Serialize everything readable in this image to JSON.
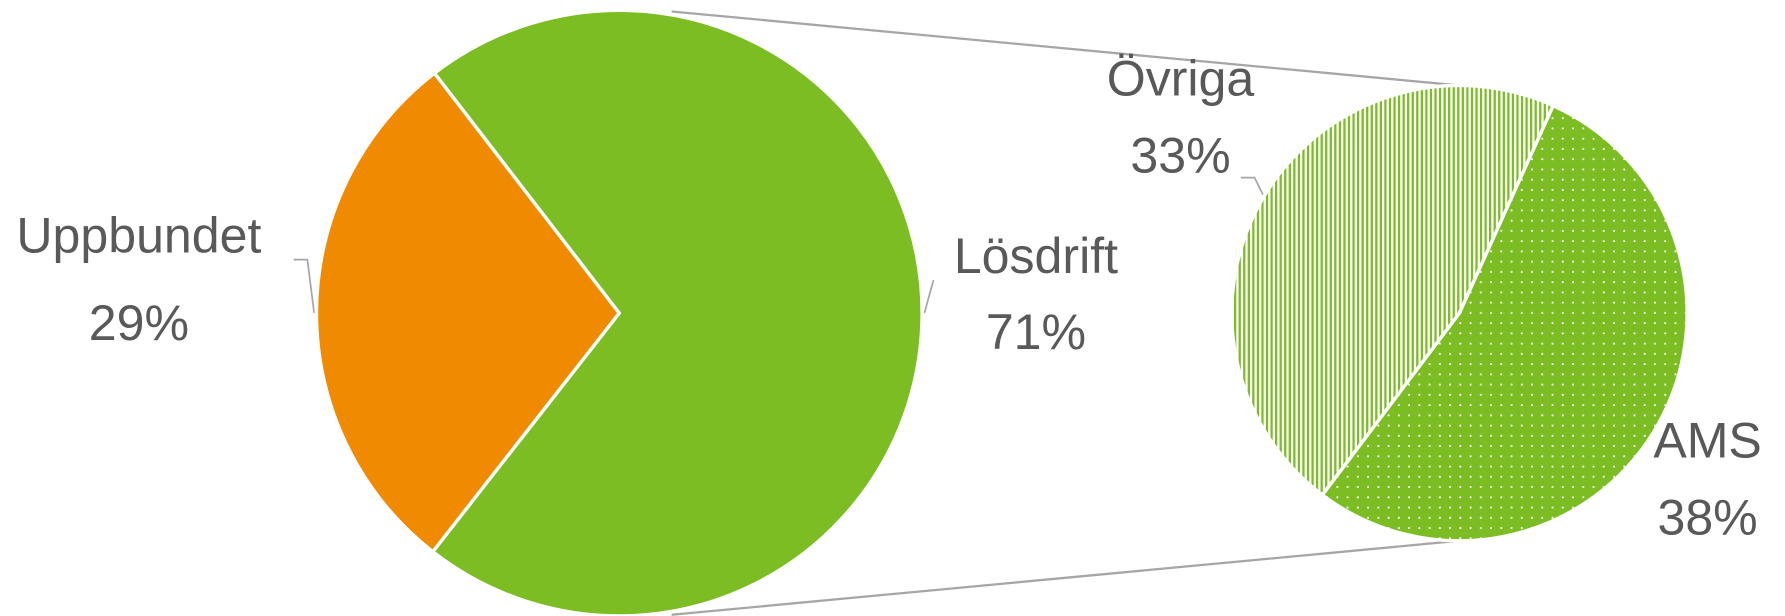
{
  "chart_data": {
    "type": "pie-of-pie",
    "main": {
      "categories": [
        "Uppbundet",
        "Lösdrift"
      ],
      "values": [
        29,
        71
      ],
      "value_labels": [
        "29%",
        "71%"
      ],
      "colors": [
        "#f08a00",
        "#7bbd22"
      ]
    },
    "secondary": {
      "categories": [
        "Övriga",
        "AMS"
      ],
      "values": [
        33,
        38
      ],
      "value_labels": [
        "33%",
        "38%"
      ],
      "colors": [
        "#7bbd22",
        "#7bbd22"
      ]
    }
  }
}
